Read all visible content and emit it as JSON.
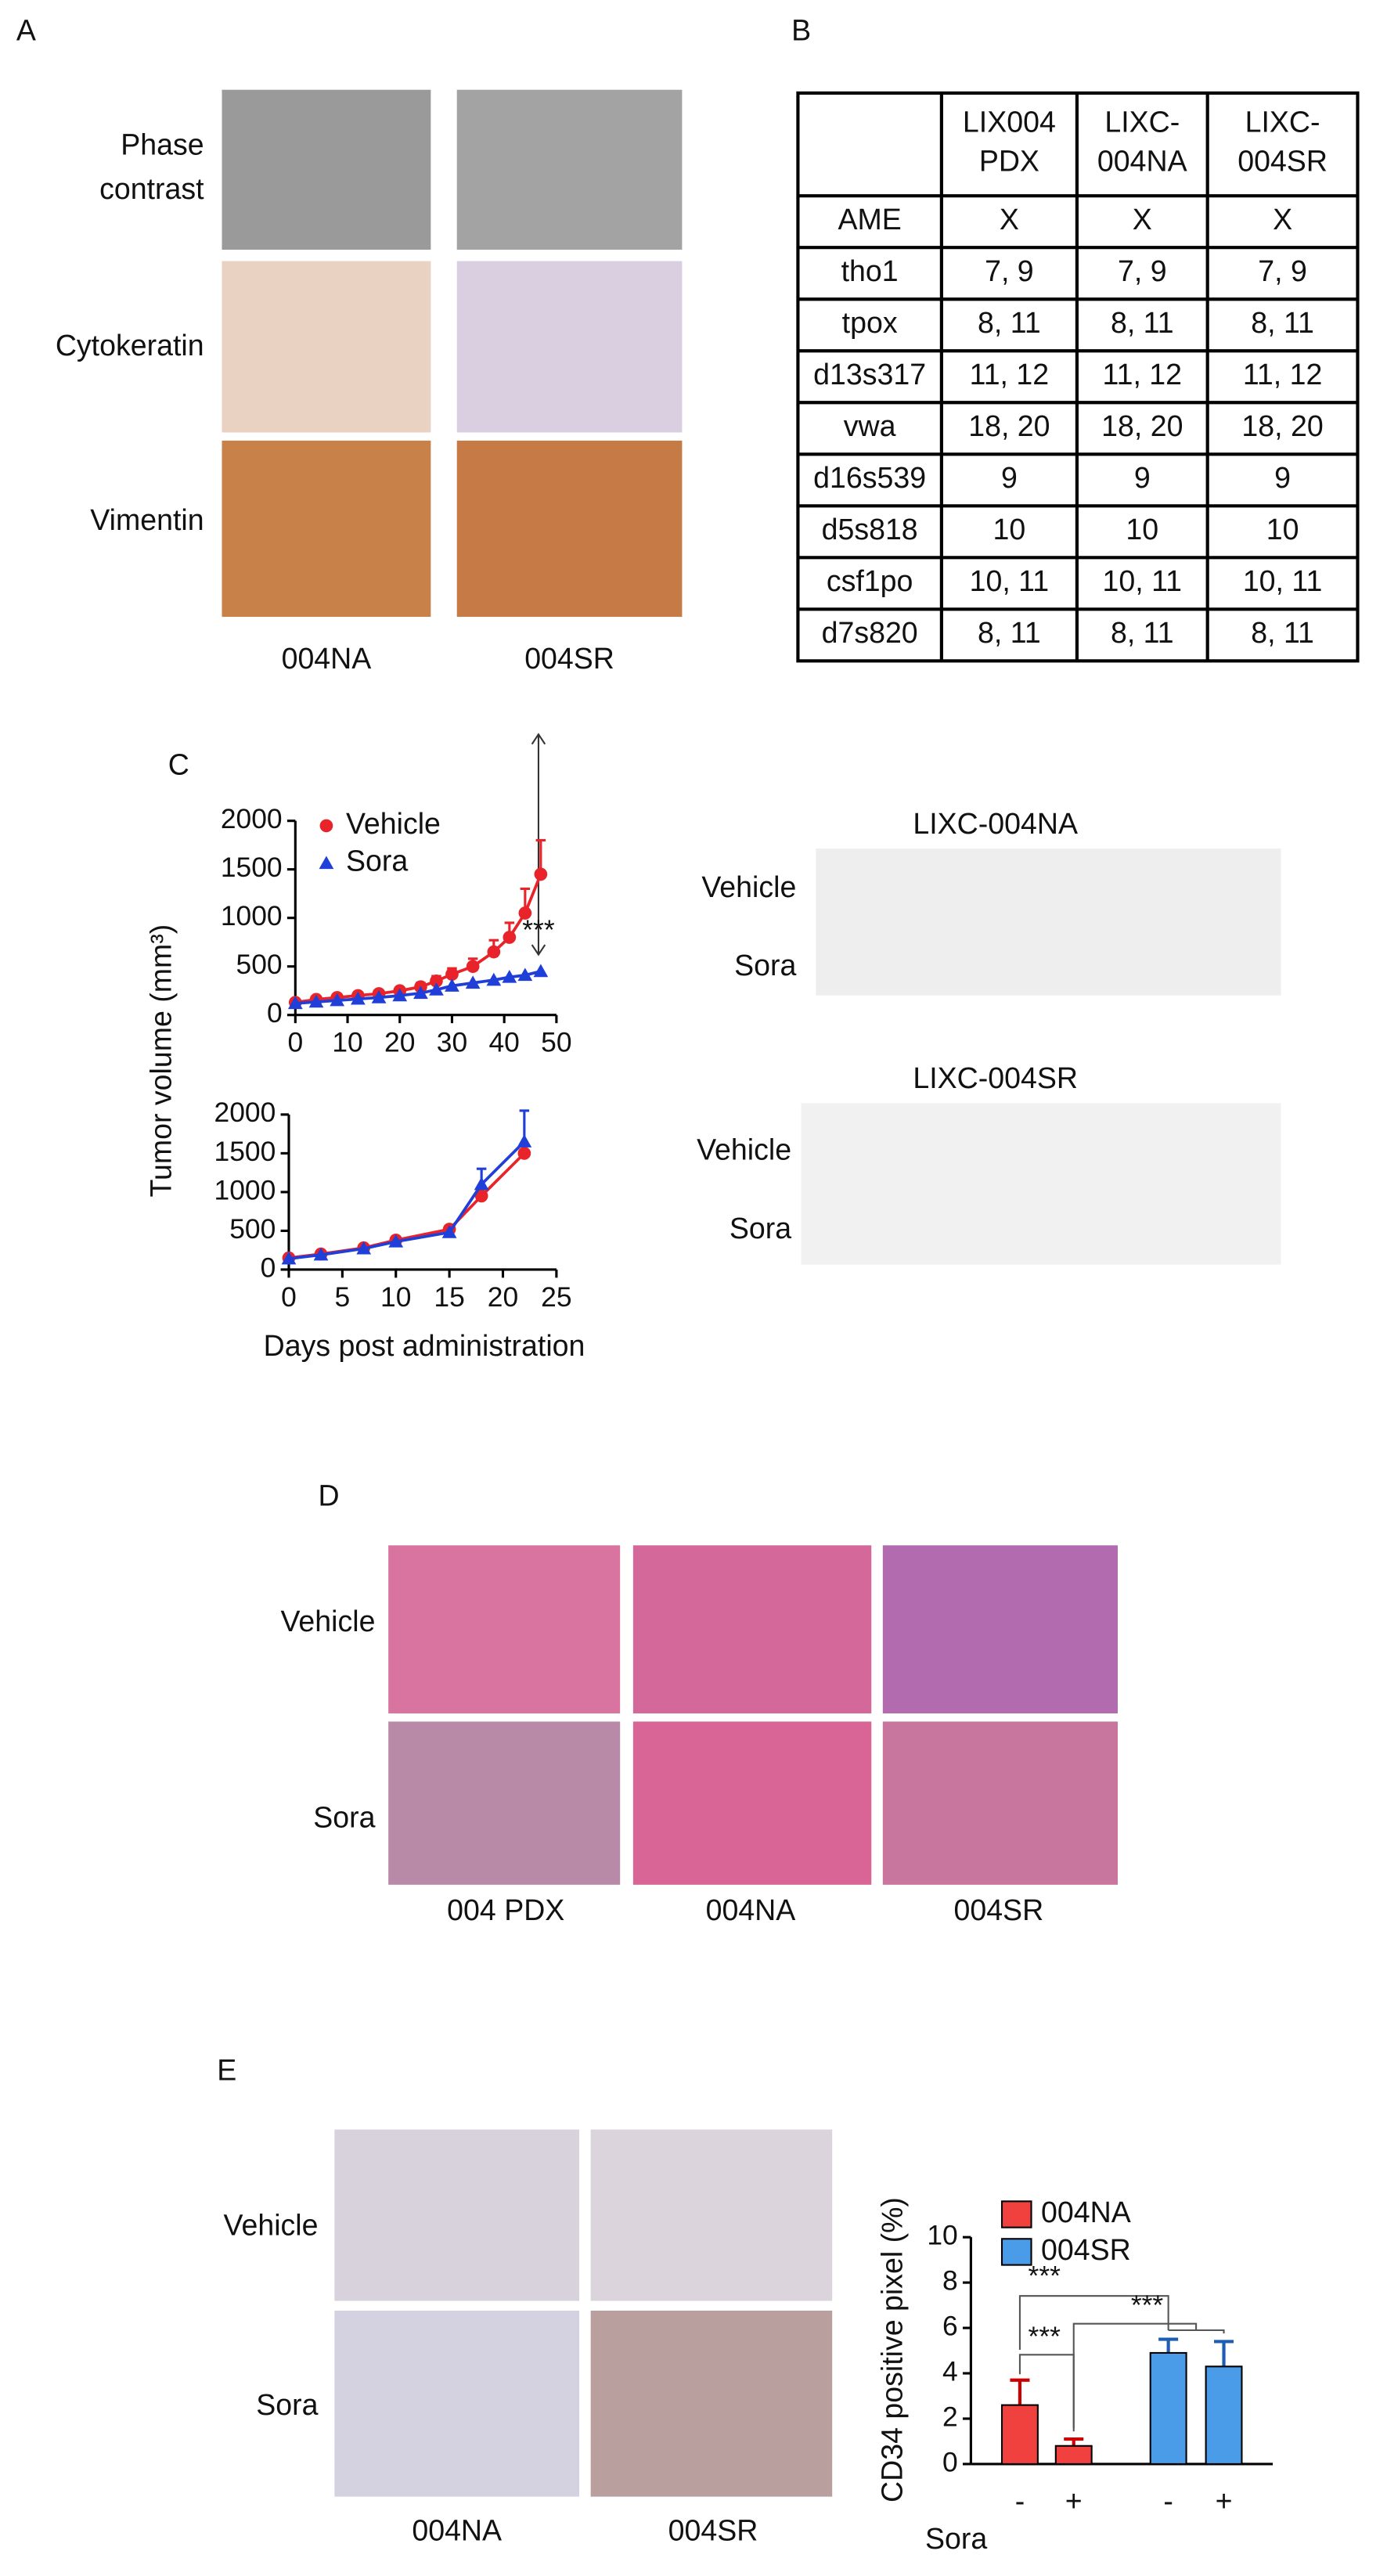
{
  "panel_a": {
    "label": "A",
    "row_labels": [
      [
        "Phase",
        "contrast"
      ],
      [
        "Cytokeratin"
      ],
      [
        "Vimentin"
      ]
    ],
    "column_labels": [
      "004NA",
      "004SR"
    ]
  },
  "panel_b": {
    "label": "B",
    "table": {
      "header": [
        [
          "LIX004",
          "PDX"
        ],
        [
          "LIXC-",
          "004NA"
        ],
        [
          "LIXC-",
          "004SR"
        ]
      ],
      "rows": [
        [
          "AME",
          "X",
          "X",
          "X"
        ],
        [
          "tho1",
          "7, 9",
          "7, 9",
          "7, 9"
        ],
        [
          "tpox",
          "8, 11",
          "8, 11",
          "8, 11"
        ],
        [
          "d13s317",
          "11, 12",
          "11, 12",
          "11, 12"
        ],
        [
          "vwa",
          "18, 20",
          "18, 20",
          "18, 20"
        ],
        [
          "d16s539",
          "9",
          "9",
          "9"
        ],
        [
          "d5s818",
          "10",
          "10",
          "10"
        ],
        [
          "csf1po",
          "10, 11",
          "10, 11",
          "10, 11"
        ],
        [
          "d7s820",
          "8, 11",
          "8, 11",
          "8, 11"
        ]
      ]
    }
  },
  "panel_c": {
    "label": "C",
    "photos": [
      {
        "title": "LIXC-004NA",
        "row_labels": [
          "Vehicle",
          "Sora"
        ]
      },
      {
        "title": "LIXC-004SR",
        "row_labels": [
          "Vehicle",
          "Sora"
        ]
      }
    ]
  },
  "panel_d": {
    "label": "D",
    "row_labels": [
      "Vehicle",
      "Sora"
    ],
    "column_labels": [
      "004 PDX",
      "004NA",
      "004SR"
    ]
  },
  "panel_e": {
    "label": "E",
    "row_labels": [
      "Vehicle",
      "Sora"
    ],
    "column_labels": [
      "004NA",
      "004SR"
    ]
  },
  "chart_data": [
    {
      "type": "line",
      "ylabel": "Tumor volume (mm³)",
      "x": [
        0,
        4,
        8,
        12,
        16,
        20,
        24,
        27,
        30,
        34,
        38,
        41,
        44,
        47
      ],
      "series": [
        {
          "name": "Vehicle",
          "color": "#e8242a",
          "marker": "circle",
          "values": [
            130,
            160,
            180,
            200,
            220,
            250,
            290,
            350,
            420,
            500,
            650,
            800,
            1050,
            1450
          ],
          "errors": [
            null,
            null,
            null,
            null,
            null,
            30,
            40,
            50,
            60,
            80,
            120,
            150,
            250,
            350
          ]
        },
        {
          "name": "Sora",
          "color": "#1f3fd8",
          "marker": "triangle",
          "values": [
            120,
            135,
            150,
            165,
            180,
            200,
            225,
            260,
            300,
            330,
            360,
            390,
            410,
            450
          ],
          "errors": [
            null,
            null,
            null,
            null,
            null,
            null,
            null,
            null,
            null,
            null,
            null,
            null,
            null,
            null
          ]
        }
      ],
      "xlim": [
        0,
        50
      ],
      "xticks": [
        0,
        10,
        20,
        30,
        40,
        50
      ],
      "ylim": [
        0,
        2000
      ],
      "yticks": [
        0,
        500,
        1000,
        1500,
        2000
      ],
      "annotations": [
        "***"
      ]
    },
    {
      "type": "line",
      "xlabel": "Days post administration",
      "x": [
        0,
        3,
        7,
        10,
        15,
        18,
        22
      ],
      "series": [
        {
          "name": "Vehicle",
          "color": "#e8242a",
          "marker": "circle",
          "values": [
            150,
            200,
            280,
            380,
            520,
            950,
            1500
          ],
          "errors": [
            null,
            null,
            null,
            null,
            null,
            null,
            null
          ]
        },
        {
          "name": "Sora",
          "color": "#1f3fd8",
          "marker": "triangle",
          "values": [
            140,
            190,
            270,
            360,
            480,
            1100,
            1650
          ],
          "errors": [
            null,
            null,
            null,
            null,
            null,
            200,
            400
          ]
        }
      ],
      "xlim": [
        0,
        25
      ],
      "xticks": [
        0,
        5,
        10,
        15,
        20,
        25
      ],
      "ylim": [
        0,
        2000
      ],
      "yticks": [
        0,
        500,
        1000,
        1500,
        2000
      ]
    },
    {
      "type": "bar",
      "ylabel": "CD34 positive pixel (%)",
      "xlabel": "Sora",
      "categories": [
        "-",
        "+",
        "-",
        "+"
      ],
      "series": [
        {
          "name": "004NA",
          "color": "#f0413f",
          "values": [
            2.6,
            0.8,
            null,
            null
          ],
          "errors": [
            1.1,
            0.3,
            null,
            null
          ]
        },
        {
          "name": "004SR",
          "color": "#4a9be8",
          "values": [
            null,
            null,
            4.9,
            4.3
          ],
          "errors": [
            null,
            null,
            0.6,
            1.1
          ]
        }
      ],
      "ylim": [
        0,
        10
      ],
      "yticks": [
        0,
        2,
        4,
        6,
        8,
        10
      ],
      "annotations": [
        "***",
        "***",
        "***"
      ]
    }
  ]
}
